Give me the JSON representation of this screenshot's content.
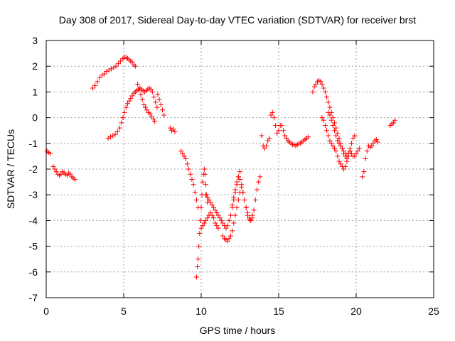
{
  "chart_data": {
    "type": "scatter",
    "title": "Day 308 of 2017, Sidereal Day-to-day VTEC variation (SDTVAR) for receiver brst",
    "xlabel": "GPS time / hours",
    "ylabel": "SDTVAR / TECUs",
    "xlim": [
      0,
      25
    ],
    "ylim": [
      -7,
      3
    ],
    "xticks": [
      0,
      5,
      10,
      15,
      20,
      25
    ],
    "yticks": [
      -7,
      -6,
      -5,
      -4,
      -3,
      -2,
      -1,
      0,
      1,
      2,
      3
    ],
    "xtick_labels": [
      "0",
      "5",
      "10",
      "15",
      "20",
      "25"
    ],
    "ytick_labels": [
      "-7",
      "-6",
      "-5",
      "-4",
      "-3",
      "-2",
      "-1",
      "0",
      "1",
      "2",
      "3"
    ],
    "grid": true,
    "marker": "plus",
    "color": "#ff0000",
    "series": [
      {
        "x": [
          0.05,
          0.15,
          0.25,
          0.45,
          0.55,
          0.65,
          0.75,
          0.85,
          0.95,
          1.05,
          1.15,
          1.25,
          1.35,
          1.45,
          1.55,
          1.65,
          1.75,
          1.85,
          3.0,
          3.15,
          3.3,
          3.45,
          3.6,
          3.75,
          3.9,
          4.05,
          4.2,
          4.35,
          4.5,
          4.65,
          4.8,
          4.95,
          5.05,
          5.15,
          5.25,
          5.35,
          5.45,
          5.55,
          5.65,
          5.75,
          4.0,
          4.15,
          4.3,
          4.45,
          4.6,
          4.75,
          4.85,
          4.95,
          5.05,
          5.15,
          5.25,
          5.35,
          5.45,
          5.55,
          5.65,
          5.75,
          5.85,
          5.95,
          6.05,
          6.15,
          6.25,
          6.35,
          6.45,
          6.55,
          6.65,
          6.75,
          6.85,
          6.95,
          7.05,
          7.15,
          5.9,
          6.0,
          6.1,
          6.2,
          6.3,
          6.4,
          6.5,
          6.6,
          6.7,
          6.8,
          6.9,
          7.0,
          7.2,
          7.3,
          7.4,
          7.5,
          7.6,
          8.0,
          8.1,
          8.2,
          8.3,
          8.7,
          8.8,
          8.9,
          9.0,
          9.1,
          9.2,
          9.3,
          9.4,
          9.5,
          9.6,
          9.7,
          9.8,
          9.7,
          9.75,
          9.8,
          9.85,
          9.9,
          9.95,
          10.0,
          10.05,
          10.1,
          10.15,
          10.2,
          10.25,
          10.3,
          10.35,
          10.4,
          10.0,
          10.1,
          10.2,
          10.3,
          10.4,
          10.5,
          10.6,
          10.7,
          10.8,
          10.9,
          11.0,
          11.1,
          10.3,
          10.4,
          10.5,
          10.6,
          10.7,
          10.8,
          10.9,
          11.0,
          11.1,
          11.2,
          11.3,
          11.4,
          11.5,
          11.6,
          11.7,
          11.8,
          11.9,
          12.0,
          12.1,
          12.2,
          12.3,
          12.4,
          12.5,
          11.4,
          11.5,
          11.6,
          11.7,
          11.8,
          11.9,
          12.0,
          12.1,
          12.2,
          12.3,
          12.4,
          12.5,
          12.6,
          12.7,
          12.8,
          12.9,
          13.0,
          13.1,
          13.2,
          13.3,
          13.4,
          13.5,
          13.6,
          13.7,
          13.8,
          12.0,
          12.1,
          12.2,
          12.3,
          12.4,
          12.5,
          12.6,
          12.7,
          12.8,
          12.9,
          13.0,
          13.1,
          13.2,
          13.3,
          13.9,
          14.0,
          14.1,
          14.2,
          14.3,
          14.4,
          14.5,
          14.6,
          14.7,
          14.8,
          14.9,
          15.0,
          15.1,
          15.2,
          15.3,
          15.4,
          15.5,
          15.6,
          15.7,
          15.8,
          15.9,
          16.0,
          16.1,
          16.2,
          16.3,
          16.4,
          16.5,
          16.6,
          16.7,
          16.8,
          16.9,
          17.2,
          17.3,
          17.4,
          17.5,
          17.6,
          17.7,
          17.8,
          17.9,
          18.0,
          18.1,
          18.2,
          18.3,
          18.4,
          18.5,
          18.6,
          18.7,
          18.8,
          18.9,
          19.0,
          19.1,
          19.2,
          19.3,
          19.4,
          19.5,
          19.6,
          19.7,
          19.8,
          19.9,
          17.8,
          17.9,
          18.0,
          18.1,
          18.2,
          18.3,
          18.4,
          18.5,
          18.6,
          18.7,
          18.8,
          18.9,
          19.0,
          19.1,
          19.2,
          19.3,
          19.4,
          19.5,
          19.6,
          18.2,
          18.3,
          18.4,
          18.5,
          18.6,
          18.7,
          18.8,
          18.9,
          19.0,
          19.1,
          19.2,
          19.3,
          19.4,
          19.5,
          19.6,
          19.7,
          19.8,
          19.9,
          20.0,
          20.1,
          20.2,
          20.4,
          20.5,
          20.6,
          20.7,
          20.8,
          20.9,
          21.0,
          21.1,
          21.2,
          21.3,
          21.4,
          22.2,
          22.3,
          22.4,
          22.5
        ],
        "y": [
          -1.3,
          -1.35,
          -1.4,
          -1.9,
          -2.0,
          -2.1,
          -2.2,
          -2.25,
          -2.2,
          -2.1,
          -2.15,
          -2.2,
          -2.25,
          -2.15,
          -2.2,
          -2.3,
          -2.35,
          -2.4,
          1.15,
          1.25,
          1.4,
          1.55,
          1.65,
          1.7,
          1.8,
          1.85,
          1.9,
          1.95,
          2.0,
          2.1,
          2.2,
          2.3,
          2.35,
          2.35,
          2.3,
          2.25,
          2.2,
          2.15,
          2.05,
          2.0,
          -0.8,
          -0.75,
          -0.7,
          -0.65,
          -0.55,
          -0.4,
          -0.2,
          0.0,
          0.2,
          0.4,
          0.55,
          0.65,
          0.75,
          0.85,
          0.95,
          1.0,
          1.05,
          1.1,
          1.15,
          1.1,
          1.05,
          1.0,
          1.05,
          1.1,
          1.15,
          1.1,
          1.0,
          0.8,
          0.6,
          0.4,
          1.3,
          1.1,
          0.9,
          0.7,
          0.5,
          0.4,
          0.3,
          0.2,
          0.15,
          0.05,
          -0.05,
          -0.15,
          0.9,
          0.7,
          0.5,
          0.3,
          0.1,
          -0.4,
          -0.5,
          -0.45,
          -0.55,
          -1.3,
          -1.4,
          -1.5,
          -1.6,
          -1.8,
          -2.0,
          -2.2,
          -2.4,
          -2.6,
          -2.9,
          -3.2,
          -3.5,
          -6.2,
          -5.8,
          -5.5,
          -5.0,
          -4.5,
          -4.0,
          -3.5,
          -3.0,
          -2.5,
          -2.2,
          -2.0,
          -2.2,
          -2.6,
          -3.0,
          -3.3,
          -4.3,
          -4.2,
          -4.1,
          -4.0,
          -3.9,
          -3.8,
          -3.7,
          -3.8,
          -3.9,
          -4.1,
          -4.2,
          -4.3,
          -3.0,
          -3.1,
          -3.2,
          -3.3,
          -3.4,
          -3.5,
          -3.6,
          -3.7,
          -3.8,
          -3.9,
          -4.0,
          -4.1,
          -4.2,
          -4.3,
          -4.2,
          -4.0,
          -3.8,
          -3.5,
          -3.2,
          -2.9,
          -2.6,
          -2.3,
          -2.1,
          -4.6,
          -4.7,
          -4.75,
          -4.8,
          -4.7,
          -4.6,
          -4.4,
          -4.1,
          -3.8,
          -3.5,
          -3.2,
          -2.9,
          -2.7,
          -2.9,
          -3.2,
          -3.5,
          -3.8,
          -3.95,
          -4.0,
          -3.9,
          -3.6,
          -3.2,
          -2.8,
          -2.5,
          -2.3,
          -3.4,
          -3.1,
          -2.8,
          -2.5,
          -2.3,
          -2.4,
          -2.6,
          -2.9,
          -3.2,
          -3.5,
          -3.7,
          -3.9,
          -4.0,
          -3.8,
          -0.7,
          -1.1,
          -1.2,
          -1.1,
          -0.9,
          -0.8,
          0.1,
          0.2,
          0.0,
          -0.3,
          -0.6,
          -0.5,
          -0.3,
          -0.3,
          -0.5,
          -0.7,
          -0.8,
          -0.9,
          -0.95,
          -1.0,
          -1.05,
          -1.05,
          -1.1,
          -1.05,
          -1.0,
          -1.0,
          -0.95,
          -0.9,
          -0.85,
          -0.8,
          -0.75,
          1.0,
          1.2,
          1.3,
          1.4,
          1.45,
          1.4,
          1.3,
          1.15,
          1.0,
          0.8,
          0.6,
          0.4,
          0.2,
          0.0,
          -0.2,
          -0.4,
          -0.6,
          -0.8,
          -1.0,
          -1.2,
          -1.4,
          -1.5,
          -1.6,
          -1.4,
          -1.2,
          -1.0,
          -0.8,
          -0.7,
          0.0,
          -0.1,
          -0.3,
          -0.5,
          -0.7,
          -0.9,
          -1.0,
          -1.1,
          -1.2,
          -1.3,
          -1.5,
          -1.7,
          -1.8,
          -1.9,
          -2.0,
          -1.9,
          -1.7,
          -1.5,
          -1.3,
          0.2,
          0.1,
          -0.1,
          -0.3,
          -0.5,
          -0.7,
          -0.9,
          -1.0,
          -1.1,
          -1.2,
          -1.3,
          -1.4,
          -1.5,
          -1.4,
          -1.3,
          -1.4,
          -1.5,
          -1.5,
          -1.4,
          -1.3,
          -1.2,
          -2.3,
          -2.1,
          -1.6,
          -1.3,
          -1.1,
          -1.15,
          -1.1,
          -1.0,
          -0.9,
          -0.85,
          -0.95,
          -0.3,
          -0.25,
          -0.2,
          -0.1
        ]
      }
    ]
  }
}
